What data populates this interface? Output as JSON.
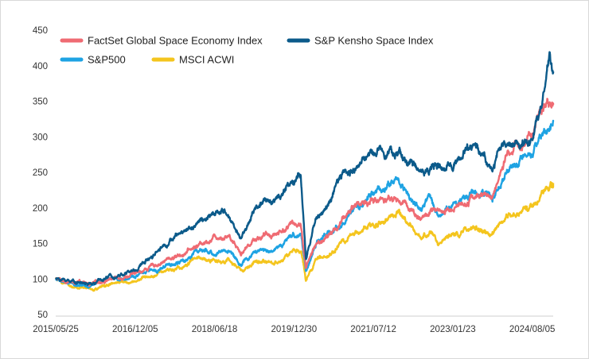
{
  "chart_data": {
    "type": "line",
    "title": "",
    "xlabel": "",
    "ylabel": "",
    "ylim": [
      50,
      450
    ],
    "yticks": [
      50,
      100,
      150,
      200,
      250,
      300,
      350,
      400,
      450
    ],
    "xticks": [
      "2015/05/25",
      "2016/12/05",
      "2018/06/18",
      "2019/12/30",
      "2021/07/12",
      "2023/01/23",
      "2024/08/05"
    ],
    "xlim": [
      "2015/05/25",
      "2024/12/31"
    ],
    "grid": false,
    "legend_position": "top-left",
    "series": [
      {
        "name": "FactSet Global Space Economy Index",
        "color": "#ef6b73",
        "points": [
          [
            "2015/05/25",
            100
          ],
          [
            "2015/10/01",
            95
          ],
          [
            "2016/02/01",
            92
          ],
          [
            "2016/06/01",
            100
          ],
          [
            "2016/12/05",
            107
          ],
          [
            "2017/06/01",
            123
          ],
          [
            "2017/12/01",
            138
          ],
          [
            "2018/06/18",
            160
          ],
          [
            "2018/10/01",
            162
          ],
          [
            "2018/12/24",
            137
          ],
          [
            "2019/04/01",
            158
          ],
          [
            "2019/09/01",
            165
          ],
          [
            "2019/12/30",
            178
          ],
          [
            "2020/02/15",
            180
          ],
          [
            "2020/03/23",
            118
          ],
          [
            "2020/06/01",
            148
          ],
          [
            "2020/09/01",
            160
          ],
          [
            "2020/12/01",
            180
          ],
          [
            "2021/03/01",
            205
          ],
          [
            "2021/07/12",
            210
          ],
          [
            "2021/11/01",
            215
          ],
          [
            "2022/03/01",
            205
          ],
          [
            "2022/06/15",
            185
          ],
          [
            "2022/09/01",
            195
          ],
          [
            "2022/12/01",
            190
          ],
          [
            "2023/01/23",
            200
          ],
          [
            "2023/07/01",
            218
          ],
          [
            "2023/10/27",
            215
          ],
          [
            "2024/01/01",
            255
          ],
          [
            "2024/04/01",
            285
          ],
          [
            "2024/08/05",
            300
          ],
          [
            "2024/10/01",
            330
          ],
          [
            "2024/11/20",
            355
          ],
          [
            "2024/12/31",
            345
          ]
        ]
      },
      {
        "name": "S&P Kensho Space Index",
        "color": "#0b5a8a",
        "points": [
          [
            "2015/05/25",
            100
          ],
          [
            "2015/09/01",
            98
          ],
          [
            "2016/02/01",
            92
          ],
          [
            "2016/06/01",
            103
          ],
          [
            "2016/12/05",
            112
          ],
          [
            "2017/06/01",
            145
          ],
          [
            "2017/12/01",
            170
          ],
          [
            "2018/06/18",
            190
          ],
          [
            "2018/09/01",
            195
          ],
          [
            "2018/12/24",
            158
          ],
          [
            "2019/04/01",
            200
          ],
          [
            "2019/09/01",
            215
          ],
          [
            "2019/12/30",
            240
          ],
          [
            "2020/02/15",
            245
          ],
          [
            "2020/03/23",
            125
          ],
          [
            "2020/06/01",
            185
          ],
          [
            "2020/09/01",
            205
          ],
          [
            "2020/12/01",
            245
          ],
          [
            "2021/03/01",
            255
          ],
          [
            "2021/07/12",
            280
          ],
          [
            "2021/11/01",
            285
          ],
          [
            "2022/03/01",
            268
          ],
          [
            "2022/06/15",
            250
          ],
          [
            "2022/09/01",
            262
          ],
          [
            "2022/12/01",
            250
          ],
          [
            "2023/01/23",
            265
          ],
          [
            "2023/07/01",
            290
          ],
          [
            "2023/10/27",
            255
          ],
          [
            "2024/01/01",
            285
          ],
          [
            "2024/04/01",
            290
          ],
          [
            "2024/08/05",
            300
          ],
          [
            "2024/10/01",
            335
          ],
          [
            "2024/12/05",
            410
          ],
          [
            "2024/12/31",
            392
          ]
        ]
      },
      {
        "name": "S&P500",
        "color": "#1ea3e3",
        "points": [
          [
            "2015/05/25",
            100
          ],
          [
            "2015/08/24",
            93
          ],
          [
            "2016/02/11",
            92
          ],
          [
            "2016/06/01",
            98
          ],
          [
            "2016/12/05",
            104
          ],
          [
            "2017/06/01",
            115
          ],
          [
            "2017/12/01",
            125
          ],
          [
            "2018/01/26",
            140
          ],
          [
            "2018/06/18",
            135
          ],
          [
            "2018/09/20",
            142
          ],
          [
            "2018/12/24",
            120
          ],
          [
            "2019/04/01",
            138
          ],
          [
            "2019/09/01",
            143
          ],
          [
            "2019/12/30",
            160
          ],
          [
            "2020/02/19",
            165
          ],
          [
            "2020/03/23",
            112
          ],
          [
            "2020/06/01",
            148
          ],
          [
            "2020/09/01",
            165
          ],
          [
            "2020/12/01",
            178
          ],
          [
            "2021/03/01",
            195
          ],
          [
            "2021/07/12",
            220
          ],
          [
            "2021/12/31",
            240
          ],
          [
            "2022/03/01",
            222
          ],
          [
            "2022/06/15",
            195
          ],
          [
            "2022/08/15",
            215
          ],
          [
            "2022/10/12",
            190
          ],
          [
            "2023/01/23",
            205
          ],
          [
            "2023/07/01",
            225
          ],
          [
            "2023/10/27",
            215
          ],
          [
            "2024/01/01",
            235
          ],
          [
            "2024/04/01",
            260
          ],
          [
            "2024/08/05",
            268
          ],
          [
            "2024/10/01",
            295
          ],
          [
            "2024/12/31",
            322
          ]
        ]
      },
      {
        "name": "MSCI ACWI",
        "color": "#f4c51e",
        "points": [
          [
            "2015/05/25",
            100
          ],
          [
            "2015/08/24",
            90
          ],
          [
            "2016/02/11",
            84
          ],
          [
            "2016/06/01",
            92
          ],
          [
            "2016/12/05",
            97
          ],
          [
            "2017/06/01",
            110
          ],
          [
            "2017/12/01",
            118
          ],
          [
            "2018/01/26",
            128
          ],
          [
            "2018/06/18",
            125
          ],
          [
            "2018/09/20",
            127
          ],
          [
            "2018/12/24",
            110
          ],
          [
            "2019/04/01",
            122
          ],
          [
            "2019/09/01",
            125
          ],
          [
            "2019/12/30",
            138
          ],
          [
            "2020/02/19",
            140
          ],
          [
            "2020/03/23",
            97
          ],
          [
            "2020/06/01",
            125
          ],
          [
            "2020/09/01",
            135
          ],
          [
            "2020/12/01",
            150
          ],
          [
            "2021/03/01",
            162
          ],
          [
            "2021/07/12",
            178
          ],
          [
            "2021/12/31",
            192
          ],
          [
            "2022/03/01",
            178
          ],
          [
            "2022/06/15",
            155
          ],
          [
            "2022/08/15",
            168
          ],
          [
            "2022/10/12",
            147
          ],
          [
            "2023/01/23",
            165
          ],
          [
            "2023/07/01",
            172
          ],
          [
            "2023/10/27",
            162
          ],
          [
            "2024/01/01",
            180
          ],
          [
            "2024/04/01",
            195
          ],
          [
            "2024/08/05",
            200
          ],
          [
            "2024/10/01",
            215
          ],
          [
            "2024/12/31",
            235
          ]
        ]
      }
    ]
  }
}
